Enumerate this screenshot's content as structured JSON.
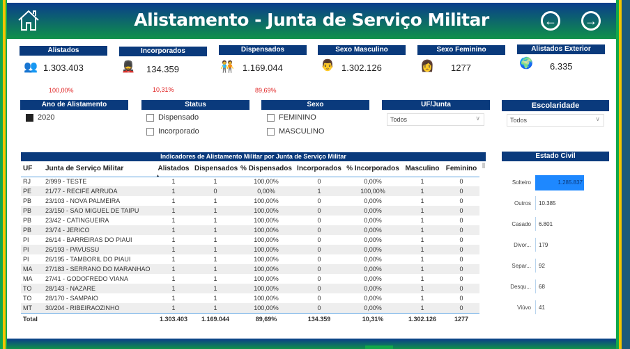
{
  "header": {
    "title": "Alistamento  - Junta de Serviço Militar",
    "home_icon": "home-icon",
    "back_icon": "arrow-left-circle-icon",
    "forward_icon": "arrow-right-circle-icon"
  },
  "colors": {
    "header_blue": "#0a3d8c",
    "header_green": "#10914a",
    "panel_blue": "#0a3a7c",
    "flag_yellow": "#f5c400",
    "flag_green": "#12a84a",
    "bar_blue": "#1e88ff",
    "percent_red": "#e02020"
  },
  "kpis": [
    {
      "label": "Alistados",
      "value": "1.303.403",
      "percent": "100,00%",
      "icon": "people-icon"
    },
    {
      "label": "Incorporados",
      "value": "134.359",
      "percent": "10,31%",
      "icon": "soldier-icon"
    },
    {
      "label": "Dispensados",
      "value": "1.169.044",
      "percent": "89,69%",
      "icon": "group-icon"
    },
    {
      "label": "Sexo Masculino",
      "value": "1.302.126",
      "icon": "man-icon"
    },
    {
      "label": "Sexo Feminino",
      "value": "1277",
      "icon": "woman-icon"
    },
    {
      "label": "Alistados Exterior",
      "value": "6.335",
      "icon": "globe-icon"
    }
  ],
  "filters": {
    "ano": {
      "label": "Ano de Alistamento",
      "options": [
        {
          "label": "2020",
          "checked": true
        }
      ]
    },
    "status": {
      "label": "Status",
      "options": [
        {
          "label": "Dispensado",
          "checked": false
        },
        {
          "label": "Incorporado",
          "checked": false
        }
      ]
    },
    "sexo": {
      "label": "Sexo",
      "options": [
        {
          "label": "FEMININO",
          "checked": false
        },
        {
          "label": "MASCULINO",
          "checked": false
        }
      ]
    },
    "uf": {
      "label": "UF/Junta",
      "value": "Todos"
    },
    "escolaridade": {
      "label": "Escolaridade",
      "value": "Todos"
    }
  },
  "table": {
    "title": "Indicadores de Alistamento Militar por Junta de Serviço Militar",
    "columns": [
      "UF",
      "Junta de Serviço Militar",
      "Alistados",
      "Dispensados",
      "% Dispensados",
      "Incorporados",
      "% Incorporados",
      "Masculino",
      "Feminino"
    ],
    "sort_column": "Alistados",
    "sort_direction": "ascending",
    "rows": [
      [
        "RJ",
        "2/999 - TESTE",
        "1",
        "1",
        "100,00%",
        "0",
        "0,00%",
        "1",
        "0"
      ],
      [
        "PE",
        "21/77 - RECIFE ARRUDA",
        "1",
        "0",
        "0,00%",
        "1",
        "100,00%",
        "1",
        "0"
      ],
      [
        "PB",
        "23/103 - NOVA PALMEIRA",
        "1",
        "1",
        "100,00%",
        "0",
        "0,00%",
        "1",
        "0"
      ],
      [
        "PB",
        "23/150 - SAO MIGUEL DE TAIPU",
        "1",
        "1",
        "100,00%",
        "0",
        "0,00%",
        "1",
        "0"
      ],
      [
        "PB",
        "23/42 - CATINGUEIRA",
        "1",
        "1",
        "100,00%",
        "0",
        "0,00%",
        "1",
        "0"
      ],
      [
        "PB",
        "23/74 - JERICO",
        "1",
        "1",
        "100,00%",
        "0",
        "0,00%",
        "1",
        "0"
      ],
      [
        "PI",
        "26/14 - BARREIRAS DO PIAUI",
        "1",
        "1",
        "100,00%",
        "0",
        "0,00%",
        "1",
        "0"
      ],
      [
        "PI",
        "26/193 - PAVUSSU",
        "1",
        "1",
        "100,00%",
        "0",
        "0,00%",
        "1",
        "0"
      ],
      [
        "PI",
        "26/195 - TAMBORIL DO PIAUI",
        "1",
        "1",
        "100,00%",
        "0",
        "0,00%",
        "1",
        "0"
      ],
      [
        "MA",
        "27/183 - SERRANO DO MARANHAO",
        "1",
        "1",
        "100,00%",
        "0",
        "0,00%",
        "1",
        "0"
      ],
      [
        "MA",
        "27/41 - GODOFREDO VIANA",
        "1",
        "1",
        "100,00%",
        "0",
        "0,00%",
        "1",
        "0"
      ],
      [
        "TO",
        "28/143 - NAZARE",
        "1",
        "1",
        "100,00%",
        "0",
        "0,00%",
        "1",
        "0"
      ],
      [
        "TO",
        "28/170 - SAMPAIO",
        "1",
        "1",
        "100,00%",
        "0",
        "0,00%",
        "1",
        "0"
      ],
      [
        "MT",
        "30/204 - RIBEIRAOZINHO",
        "1",
        "1",
        "100,00%",
        "0",
        "0,00%",
        "1",
        "0"
      ]
    ],
    "total": [
      "Total",
      "",
      "1.303.403",
      "1.169.044",
      "89,69%",
      "134.359",
      "10,31%",
      "1.302.126",
      "1277"
    ]
  },
  "estado_civil": {
    "title": "Estado Civil",
    "chart_data": {
      "type": "bar",
      "orientation": "horizontal",
      "categories": [
        "Solteiro",
        "Outros",
        "Casado",
        "Divor...",
        "Separ...",
        "Desqu...",
        "Viúvo"
      ],
      "values": [
        1285837,
        10385,
        6801,
        179,
        92,
        68,
        41
      ],
      "labels": [
        "1.285.837",
        "10.385",
        "6.801",
        "179",
        "92",
        "68",
        "41"
      ]
    }
  }
}
